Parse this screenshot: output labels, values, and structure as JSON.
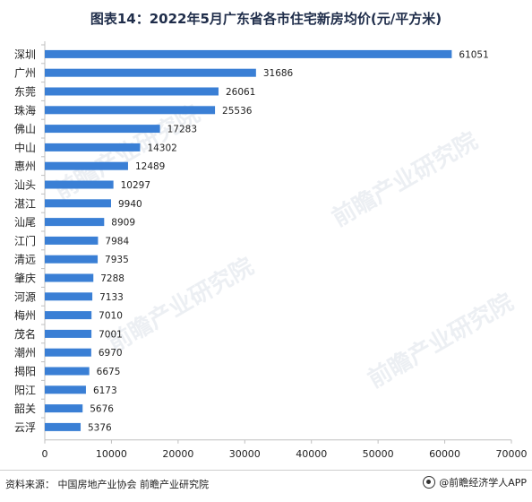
{
  "title": "图表14：2022年5月广东省各市住宅新房均价(元/平方米)",
  "footer": {
    "source": "资料来源：  中国房地产业协会 前瞻产业研究院",
    "brand": "@前瞻经济学人APP"
  },
  "watermark": {
    "text": "前瞻产业研究院"
  },
  "colors": {
    "bar": "#3a7fd5",
    "axis": "#bfbfbf",
    "text": "#222222"
  },
  "chart_data": {
    "type": "bar",
    "orientation": "horizontal",
    "categories": [
      "深圳",
      "广州",
      "东莞",
      "珠海",
      "佛山",
      "中山",
      "惠州",
      "汕头",
      "湛江",
      "汕尾",
      "江门",
      "清远",
      "肇庆",
      "河源",
      "梅州",
      "茂名",
      "潮州",
      "揭阳",
      "阳江",
      "韶关",
      "云浮"
    ],
    "values": [
      61051,
      31686,
      26061,
      25536,
      17283,
      14302,
      12489,
      10297,
      9940,
      8909,
      7984,
      7935,
      7288,
      7133,
      7010,
      7001,
      6970,
      6675,
      6173,
      5676,
      5376
    ],
    "xlim": [
      0,
      70000
    ],
    "xticks": [
      0,
      10000,
      20000,
      30000,
      40000,
      50000,
      60000,
      70000
    ],
    "data_labels": true,
    "grid": false,
    "legend": "none"
  }
}
